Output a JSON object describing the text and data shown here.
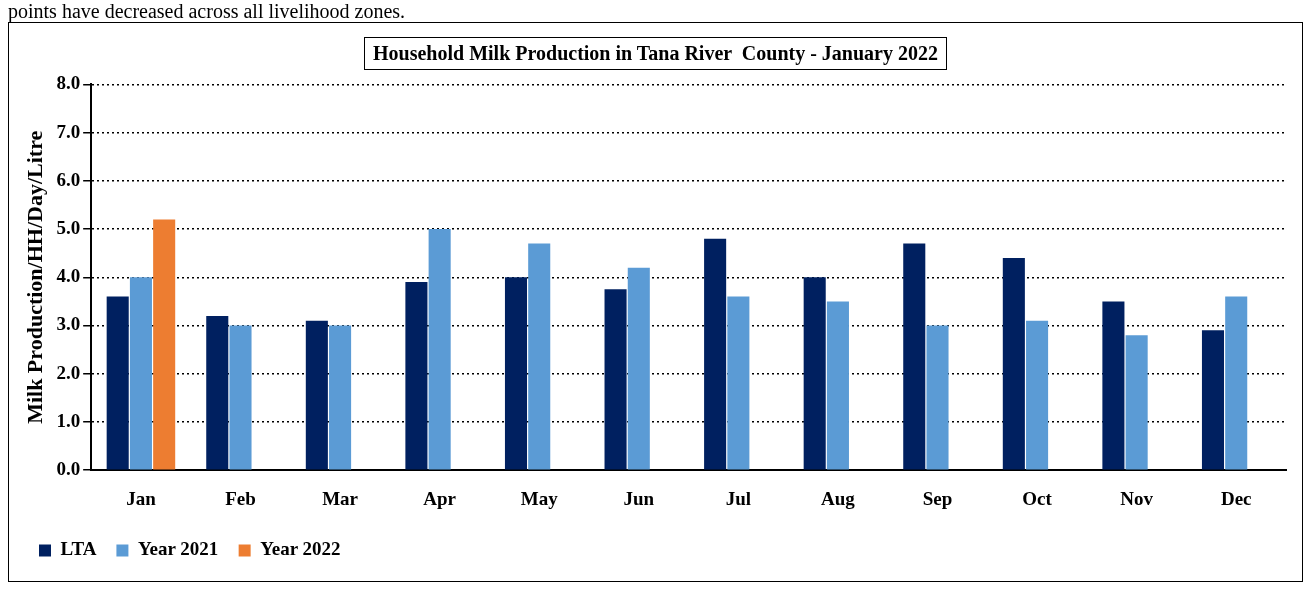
{
  "chart_data": {
    "type": "bar",
    "title": "Household Milk Production in Tana River  County - January 2022",
    "ylabel": "Milk Production/HH/Day/Litre",
    "annotations": [
      "points have decreased across all  livelihood zones."
    ],
    "categories": [
      "Jan",
      "Feb",
      "Mar",
      "Apr",
      "May",
      "Jun",
      "Jul",
      "Aug",
      "Sep",
      "Oct",
      "Nov",
      "Dec"
    ],
    "series": [
      {
        "name": "LTA",
        "color": "#002060",
        "values": [
          3.6,
          3.2,
          3.1,
          3.9,
          4.0,
          3.75,
          4.8,
          4.0,
          4.7,
          4.4,
          3.5,
          2.9
        ]
      },
      {
        "name": "Year 2021",
        "color": "#5b9bd5",
        "values": [
          4.0,
          3.0,
          3.0,
          5.0,
          4.7,
          4.2,
          3.6,
          3.5,
          3.0,
          3.1,
          2.8,
          3.6
        ]
      },
      {
        "name": "Year 2022",
        "color": "#ed7d31",
        "values": [
          5.2,
          null,
          null,
          null,
          null,
          null,
          null,
          null,
          null,
          null,
          null,
          null
        ]
      }
    ],
    "ylim": [
      0,
      8
    ],
    "yticks": [
      {
        "value": 0,
        "label": "0.0"
      },
      {
        "value": 1,
        "label": "1.0"
      },
      {
        "value": 2,
        "label": "2.0"
      },
      {
        "value": 3,
        "label": "3.0"
      },
      {
        "value": 4,
        "label": "4.0"
      },
      {
        "value": 5,
        "label": "5.0"
      },
      {
        "value": 6,
        "label": "6.0"
      },
      {
        "value": 7,
        "label": "7.0"
      },
      {
        "value": 8,
        "label": "8.0"
      }
    ],
    "grid": "y",
    "legend": "bottom left"
  }
}
